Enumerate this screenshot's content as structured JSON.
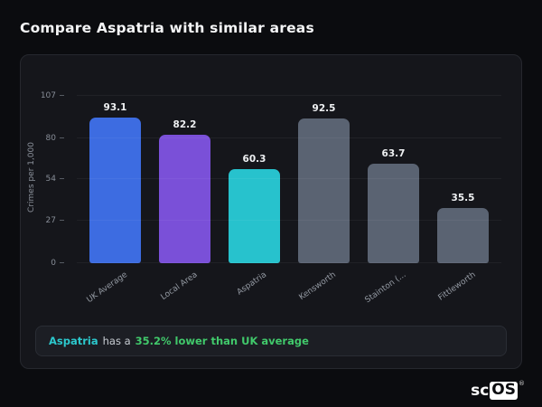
{
  "page_title": "Compare Aspatria with similar areas",
  "chart_data": {
    "type": "bar",
    "title": "",
    "xlabel": "",
    "ylabel": "Crimes per 1,000",
    "categories": [
      "UK Average",
      "Local Area",
      "Aspatria",
      "Kensworth",
      "Stainton (...",
      "Fittleworth"
    ],
    "values": [
      93.1,
      82.2,
      60.3,
      92.5,
      63.7,
      35.5
    ],
    "yticks": [
      0,
      27,
      54,
      80,
      107
    ],
    "ylim": [
      0,
      107
    ],
    "grid": "subtle-horizontal",
    "legend": "none",
    "bar_colors": [
      "#3d6ce1",
      "#7a50d8",
      "#27c2cd",
      "#5a6372",
      "#5a6372",
      "#5a6372"
    ]
  },
  "footer": {
    "area": "Aspatria",
    "middle": "has a",
    "stat": "35.2% lower than UK average"
  },
  "logo": {
    "prefix": "sc",
    "suffix": "OS",
    "reg": "®"
  }
}
